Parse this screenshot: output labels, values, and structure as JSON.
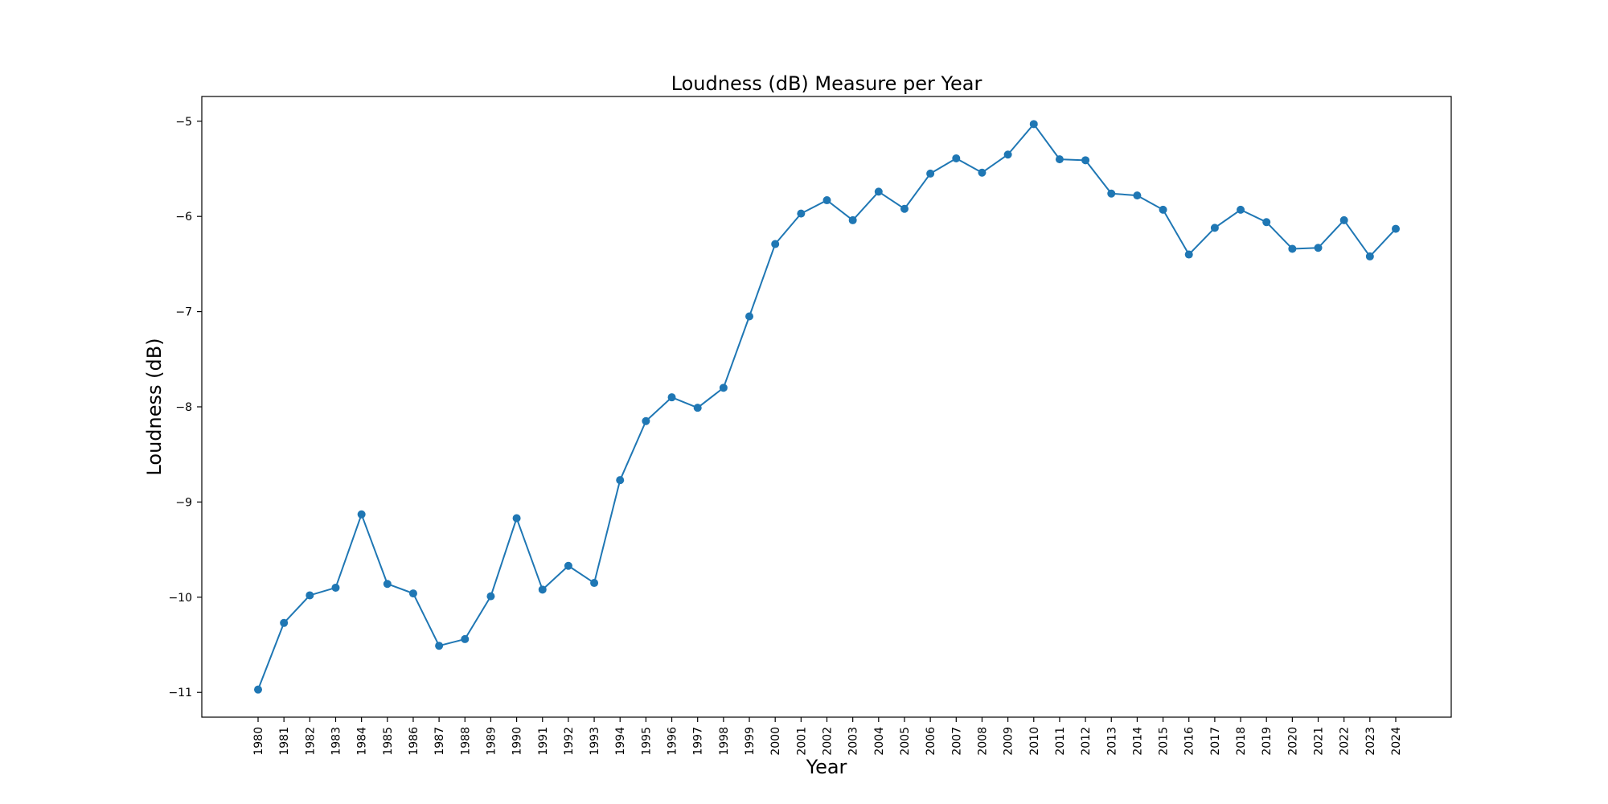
{
  "chart_data": {
    "type": "line",
    "title": "Loudness (dB) Measure per Year",
    "xlabel": "Year",
    "ylabel": "Loudness (dB)",
    "x": [
      "1980",
      "1981",
      "1982",
      "1983",
      "1984",
      "1985",
      "1986",
      "1987",
      "1988",
      "1989",
      "1990",
      "1991",
      "1992",
      "1993",
      "1994",
      "1995",
      "1996",
      "1997",
      "1998",
      "1999",
      "2000",
      "2001",
      "2002",
      "2003",
      "2004",
      "2005",
      "2006",
      "2007",
      "2008",
      "2009",
      "2010",
      "2011",
      "2012",
      "2013",
      "2014",
      "2015",
      "2016",
      "2017",
      "2018",
      "2019",
      "2020",
      "2021",
      "2022",
      "2023",
      "2024"
    ],
    "series": [
      {
        "name": "",
        "values": [
          -10.97,
          -10.27,
          -9.98,
          -9.9,
          -9.13,
          -9.86,
          -9.96,
          -10.51,
          -10.44,
          -9.99,
          -9.17,
          -9.92,
          -9.67,
          -9.85,
          -8.77,
          -8.15,
          -7.9,
          -8.01,
          -7.8,
          -7.05,
          -6.29,
          -5.97,
          -5.83,
          -6.04,
          -5.74,
          -5.92,
          -5.55,
          -5.39,
          -5.54,
          -5.35,
          -5.03,
          -5.4,
          -5.41,
          -5.76,
          -5.78,
          -5.93,
          -6.4,
          -6.12,
          -5.93,
          -6.06,
          -6.34,
          -6.33,
          -6.04,
          -6.42,
          -6.13
        ],
        "color": "#1f77b4"
      }
    ],
    "yticks": [
      -11,
      -10,
      -9,
      -8,
      -7,
      -6,
      -5
    ],
    "ylim": [
      -11.26,
      -4.74
    ],
    "grid": false,
    "legend": "none"
  }
}
